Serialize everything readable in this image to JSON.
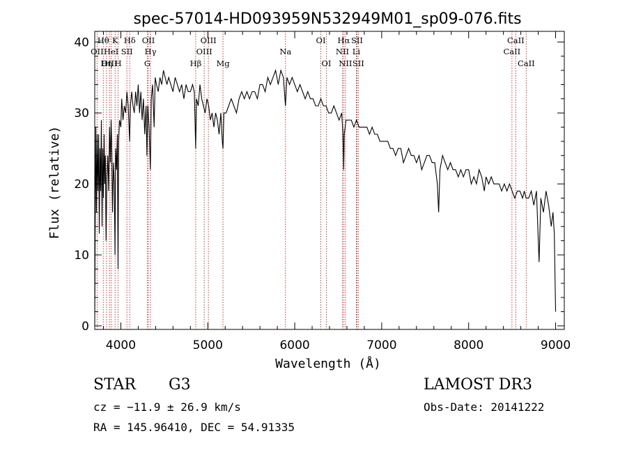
{
  "chart_data": {
    "type": "line",
    "title": "spec-57014-HD093959N532949M01_sp09-076.fits",
    "xlabel": "Wavelength (Å)",
    "ylabel": "Flux (relative)",
    "xlim": [
      3700,
      9100
    ],
    "ylim": [
      -0.5,
      41.5
    ],
    "xticks": [
      4000,
      5000,
      6000,
      7000,
      8000,
      9000
    ],
    "yticks": [
      0,
      10,
      20,
      30,
      40
    ],
    "grid": false,
    "series": [
      {
        "name": "spectrum",
        "color": "#000000",
        "points": [
          [
            3700,
            0
          ],
          [
            3705,
            14
          ],
          [
            3712,
            28
          ],
          [
            3720,
            16
          ],
          [
            3728,
            27
          ],
          [
            3736,
            19
          ],
          [
            3745,
            27
          ],
          [
            3752,
            13
          ],
          [
            3760,
            25
          ],
          [
            3768,
            19
          ],
          [
            3776,
            29
          ],
          [
            3784,
            14
          ],
          [
            3792,
            25
          ],
          [
            3800,
            18
          ],
          [
            3808,
            27
          ],
          [
            3815,
            20
          ],
          [
            3822,
            24
          ],
          [
            3830,
            12
          ],
          [
            3840,
            21
          ],
          [
            3850,
            24
          ],
          [
            3860,
            19
          ],
          [
            3870,
            28
          ],
          [
            3880,
            23
          ],
          [
            3888,
            29
          ],
          [
            3895,
            26
          ],
          [
            3905,
            16
          ],
          [
            3915,
            23
          ],
          [
            3925,
            20
          ],
          [
            3933,
            10
          ],
          [
            3940,
            25
          ],
          [
            3950,
            22
          ],
          [
            3960,
            27
          ],
          [
            3968,
            8
          ],
          [
            3975,
            26
          ],
          [
            3985,
            29
          ],
          [
            4000,
            28
          ],
          [
            4010,
            32
          ],
          [
            4025,
            29
          ],
          [
            4040,
            31
          ],
          [
            4055,
            30
          ],
          [
            4070,
            33
          ],
          [
            4085,
            31
          ],
          [
            4101,
            26
          ],
          [
            4110,
            31
          ],
          [
            4125,
            33
          ],
          [
            4140,
            31
          ],
          [
            4155,
            30
          ],
          [
            4170,
            33
          ],
          [
            4185,
            31
          ],
          [
            4200,
            34
          ],
          [
            4215,
            30
          ],
          [
            4230,
            33
          ],
          [
            4245,
            29
          ],
          [
            4260,
            32
          ],
          [
            4275,
            27
          ],
          [
            4290,
            31
          ],
          [
            4300,
            24
          ],
          [
            4310,
            31
          ],
          [
            4325,
            28
          ],
          [
            4340,
            22
          ],
          [
            4350,
            32
          ],
          [
            4365,
            34
          ],
          [
            4383,
            28
          ],
          [
            4395,
            35
          ],
          [
            4410,
            34
          ],
          [
            4430,
            33
          ],
          [
            4450,
            35
          ],
          [
            4470,
            34
          ],
          [
            4490,
            36
          ],
          [
            4510,
            35
          ],
          [
            4530,
            34
          ],
          [
            4550,
            35
          ],
          [
            4575,
            34
          ],
          [
            4600,
            33
          ],
          [
            4625,
            35
          ],
          [
            4650,
            34
          ],
          [
            4675,
            33
          ],
          [
            4700,
            34
          ],
          [
            4725,
            32
          ],
          [
            4750,
            34
          ],
          [
            4775,
            33
          ],
          [
            4800,
            33
          ],
          [
            4825,
            34
          ],
          [
            4845,
            33
          ],
          [
            4861,
            25
          ],
          [
            4870,
            32
          ],
          [
            4890,
            31
          ],
          [
            4910,
            34
          ],
          [
            4930,
            32
          ],
          [
            4950,
            31
          ],
          [
            4970,
            30
          ],
          [
            4990,
            32
          ],
          [
            5010,
            31
          ],
          [
            5030,
            29
          ],
          [
            5050,
            30
          ],
          [
            5070,
            28
          ],
          [
            5090,
            30
          ],
          [
            5110,
            29
          ],
          [
            5130,
            27
          ],
          [
            5150,
            30
          ],
          [
            5167,
            26
          ],
          [
            5175,
            25
          ],
          [
            5185,
            30
          ],
          [
            5210,
            30
          ],
          [
            5240,
            31
          ],
          [
            5270,
            32
          ],
          [
            5300,
            31
          ],
          [
            5330,
            30
          ],
          [
            5360,
            32
          ],
          [
            5390,
            33
          ],
          [
            5420,
            32
          ],
          [
            5450,
            33
          ],
          [
            5480,
            32
          ],
          [
            5510,
            33
          ],
          [
            5540,
            33
          ],
          [
            5570,
            32
          ],
          [
            5600,
            34
          ],
          [
            5630,
            34
          ],
          [
            5660,
            33
          ],
          [
            5690,
            35
          ],
          [
            5720,
            34
          ],
          [
            5750,
            35
          ],
          [
            5780,
            36
          ],
          [
            5810,
            34
          ],
          [
            5840,
            36
          ],
          [
            5870,
            35
          ],
          [
            5893,
            31
          ],
          [
            5910,
            35
          ],
          [
            5940,
            34
          ],
          [
            5970,
            35
          ],
          [
            6000,
            34
          ],
          [
            6030,
            33
          ],
          [
            6060,
            34
          ],
          [
            6090,
            33
          ],
          [
            6120,
            32
          ],
          [
            6150,
            33
          ],
          [
            6180,
            32
          ],
          [
            6210,
            32
          ],
          [
            6240,
            31
          ],
          [
            6270,
            31
          ],
          [
            6300,
            32
          ],
          [
            6330,
            31
          ],
          [
            6360,
            31
          ],
          [
            6390,
            30
          ],
          [
            6420,
            30
          ],
          [
            6450,
            31
          ],
          [
            6480,
            30
          ],
          [
            6510,
            29
          ],
          [
            6540,
            30
          ],
          [
            6555,
            27
          ],
          [
            6563,
            22
          ],
          [
            6570,
            27
          ],
          [
            6590,
            29
          ],
          [
            6620,
            29
          ],
          [
            6650,
            29
          ],
          [
            6680,
            28
          ],
          [
            6710,
            29
          ],
          [
            6740,
            28
          ],
          [
            6770,
            28
          ],
          [
            6800,
            28
          ],
          [
            6830,
            28
          ],
          [
            6860,
            27
          ],
          [
            6890,
            28
          ],
          [
            6920,
            27
          ],
          [
            6950,
            27
          ],
          [
            6980,
            26
          ],
          [
            7010,
            26
          ],
          [
            7040,
            26
          ],
          [
            7070,
            26
          ],
          [
            7100,
            25
          ],
          [
            7130,
            25
          ],
          [
            7160,
            24
          ],
          [
            7190,
            25
          ],
          [
            7220,
            25
          ],
          [
            7250,
            23
          ],
          [
            7280,
            24
          ],
          [
            7310,
            25
          ],
          [
            7340,
            24
          ],
          [
            7370,
            24
          ],
          [
            7400,
            23
          ],
          [
            7430,
            24
          ],
          [
            7460,
            22
          ],
          [
            7490,
            23
          ],
          [
            7520,
            24
          ],
          [
            7550,
            24
          ],
          [
            7580,
            23
          ],
          [
            7610,
            23
          ],
          [
            7640,
            20
          ],
          [
            7655,
            16
          ],
          [
            7670,
            22
          ],
          [
            7700,
            24
          ],
          [
            7730,
            23
          ],
          [
            7760,
            22
          ],
          [
            7790,
            23
          ],
          [
            7820,
            22
          ],
          [
            7850,
            22
          ],
          [
            7880,
            21
          ],
          [
            7910,
            22
          ],
          [
            7940,
            21
          ],
          [
            7970,
            22
          ],
          [
            8000,
            22
          ],
          [
            8030,
            20
          ],
          [
            8060,
            21
          ],
          [
            8090,
            20
          ],
          [
            8120,
            22
          ],
          [
            8150,
            21
          ],
          [
            8180,
            19
          ],
          [
            8200,
            21
          ],
          [
            8230,
            20
          ],
          [
            8260,
            21
          ],
          [
            8290,
            20
          ],
          [
            8320,
            20
          ],
          [
            8350,
            20
          ],
          [
            8380,
            19
          ],
          [
            8410,
            20
          ],
          [
            8440,
            19
          ],
          [
            8470,
            20
          ],
          [
            8500,
            19
          ],
          [
            8530,
            18
          ],
          [
            8560,
            19
          ],
          [
            8590,
            19
          ],
          [
            8620,
            18
          ],
          [
            8640,
            19
          ],
          [
            8660,
            18
          ],
          [
            8690,
            18
          ],
          [
            8720,
            19
          ],
          [
            8750,
            17
          ],
          [
            8780,
            19
          ],
          [
            8810,
            9
          ],
          [
            8830,
            18
          ],
          [
            8860,
            16
          ],
          [
            8890,
            19
          ],
          [
            8920,
            17
          ],
          [
            8950,
            14
          ],
          [
            8970,
            16
          ],
          [
            8985,
            13
          ],
          [
            9000,
            2
          ]
        ]
      }
    ],
    "spectral_lines": [
      {
        "label": "Hθ",
        "wavelength": 3798,
        "label_row": 1
      },
      {
        "label": "OII",
        "wavelength": 3727,
        "label_row": 2
      },
      {
        "label": "OIII",
        "wavelength": 3869,
        "label_row": 3
      },
      {
        "label": "K",
        "wavelength": 3934,
        "label_row": 1
      },
      {
        "label": "HeI",
        "wavelength": 3889,
        "label_row": 2
      },
      {
        "label": "Hη",
        "wavelength": 3835,
        "label_row": 3
      },
      {
        "label": "SII",
        "wavelength": 4070,
        "label_row": 2
      },
      {
        "label": "H",
        "wavelength": 3969,
        "label_row": 3
      },
      {
        "label": "Hδ",
        "wavelength": 4102,
        "label_row": 1
      },
      {
        "label": "OII",
        "wavelength": 4317,
        "label_row": 1
      },
      {
        "label": "Hγ",
        "wavelength": 4341,
        "label_row": 2
      },
      {
        "label": "G",
        "wavelength": 4305,
        "label_row": 3
      },
      {
        "label": "OIII",
        "wavelength": 5007,
        "label_row": 1
      },
      {
        "label": "OIII",
        "wavelength": 4959,
        "label_row": 2
      },
      {
        "label": "Hβ",
        "wavelength": 4861,
        "label_row": 3
      },
      {
        "label": "Mg",
        "wavelength": 5175,
        "label_row": 3
      },
      {
        "label": "Na",
        "wavelength": 5893,
        "label_row": 2
      },
      {
        "label": "OI",
        "wavelength": 6300,
        "label_row": 1
      },
      {
        "label": "OI",
        "wavelength": 6364,
        "label_row": 3
      },
      {
        "label": "Hα",
        "wavelength": 6563,
        "label_row": 1
      },
      {
        "label": "SII",
        "wavelength": 6716,
        "label_row": 1
      },
      {
        "label": "NII",
        "wavelength": 6548,
        "label_row": 2
      },
      {
        "label": "Li",
        "wavelength": 6708,
        "label_row": 2
      },
      {
        "label": "NII",
        "wavelength": 6583,
        "label_row": 3
      },
      {
        "label": "SII",
        "wavelength": 6731,
        "label_row": 3
      },
      {
        "label": "CaII",
        "wavelength": 8542,
        "label_row": 1
      },
      {
        "label": "CaII",
        "wavelength": 8498,
        "label_row": 2
      },
      {
        "label": "CaII",
        "wavelength": 8662,
        "label_row": 3
      }
    ],
    "line_color": "#b22222"
  },
  "info": {
    "class": "STAR",
    "subclass": "G3",
    "survey": "LAMOST DR3",
    "cz": "cz = −11.9 ± 26.9 km/s",
    "obs_date": "Obs-Date: 20141222",
    "coords": "RA = 145.96410, DEC =  54.91335"
  }
}
